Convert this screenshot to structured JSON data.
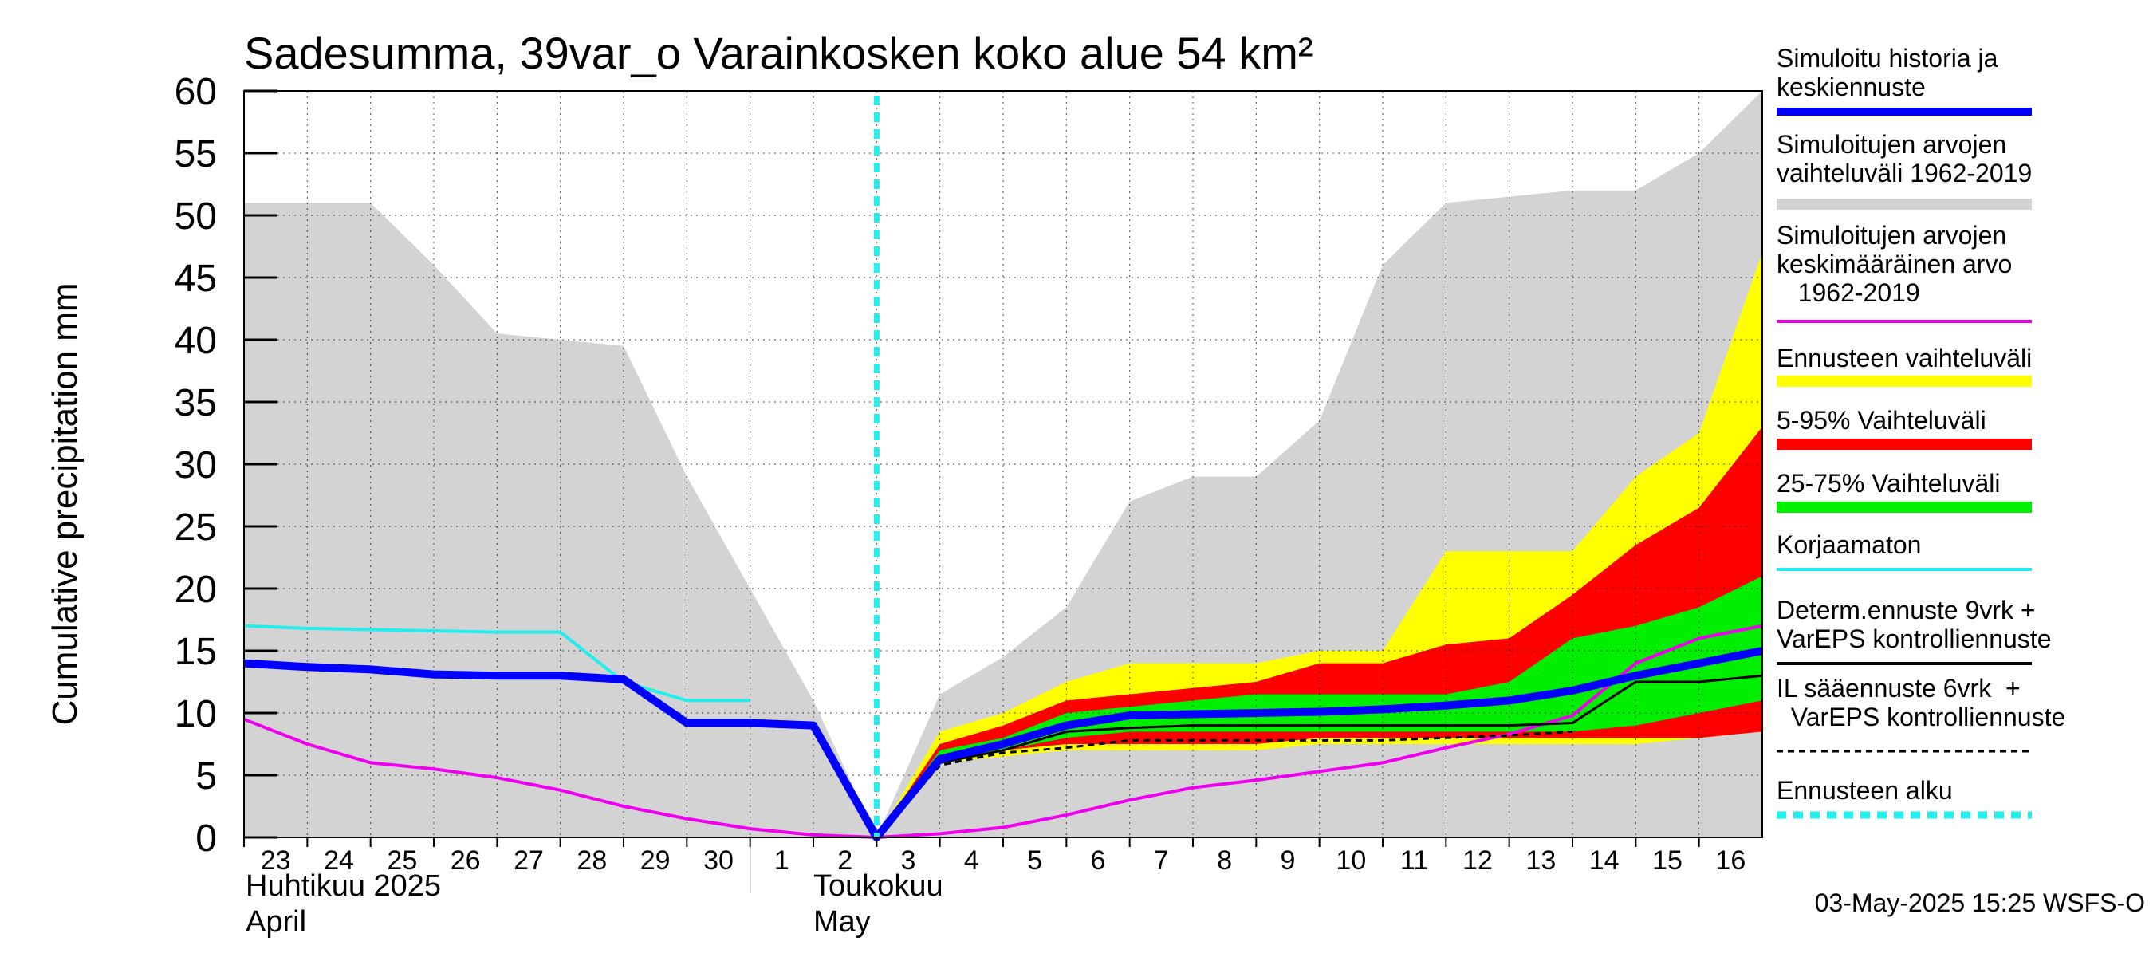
{
  "chart_data": {
    "type": "area",
    "title": "Sadesumma, 39var_o Varainkosken koko alue 54 km²",
    "ylabel": "Cumulative precipitation   mm",
    "ylim": [
      0,
      60
    ],
    "yticks": [
      0,
      5,
      10,
      15,
      20,
      25,
      30,
      35,
      40,
      45,
      50,
      55,
      60
    ],
    "xlim": [
      0,
      24
    ],
    "x_tick_labels": [
      "23",
      "24",
      "25",
      "26",
      "27",
      "28",
      "29",
      "30",
      "1",
      "2",
      "3",
      "4",
      "5",
      "6",
      "7",
      "8",
      "9",
      "10",
      "11",
      "12",
      "13",
      "14",
      "15",
      "16"
    ],
    "month_labels": {
      "april_fi": "Huhtikuu  2025",
      "april_en": "April",
      "may_fi": "Toukokuu",
      "may_en": "May"
    },
    "forecast_start_x": 10,
    "timestamp": "03-May-2025 15:25 WSFS-O",
    "colors": {
      "sim_range": "#d3d3d3",
      "forecast_range": "#ffff00",
      "p5_95": "#ff0000",
      "p25_75": "#00ee00",
      "history_median": "#0000ff",
      "sim_mean": "#ee00ee",
      "uncorrected": "#22eeee",
      "determ": "#000000",
      "il": "#000000",
      "forecast_start": "#22eeee"
    },
    "legend": [
      {
        "key": "history_median",
        "label": [
          "Simuloitu historia ja",
          "keskiennuste"
        ],
        "style": "thick"
      },
      {
        "key": "sim_range",
        "label": [
          "Simuloitujen arvojen",
          "vaihteluväli 1962-2019"
        ],
        "style": "band"
      },
      {
        "key": "sim_mean",
        "label": [
          "Simuloitujen arvojen",
          "keskimääräinen arvo",
          "   1962-2019"
        ],
        "style": "line"
      },
      {
        "key": "forecast_range",
        "label": [
          "Ennusteen vaihteluväli"
        ],
        "style": "band"
      },
      {
        "key": "p5_95",
        "label": [
          "5-95% Vaihteluväli"
        ],
        "style": "band"
      },
      {
        "key": "p25_75",
        "label": [
          "25-75% Vaihteluväli"
        ],
        "style": "band"
      },
      {
        "key": "uncorrected",
        "label": [
          "Korjaamaton"
        ],
        "style": "line"
      },
      {
        "key": "determ",
        "label": [
          "Determ.ennuste 9vrk +",
          "VarEPS kontrolliennuste"
        ],
        "style": "line"
      },
      {
        "key": "il",
        "label": [
          "IL sääennuste 6vrk  +",
          "  VarEPS kontrolliennuste"
        ],
        "style": "dashed"
      },
      {
        "key": "forecast_start",
        "label": [
          "Ennusteen alku"
        ],
        "style": "dotted"
      }
    ],
    "series": {
      "sim_range": {
        "x": [
          0,
          1,
          2,
          3,
          4,
          5,
          6,
          7,
          8,
          9,
          10,
          11,
          12,
          13,
          14,
          15,
          16,
          17,
          18,
          19,
          20,
          21,
          22,
          23,
          24
        ],
        "upper": [
          51,
          51,
          51,
          46,
          40.5,
          40,
          39.5,
          29,
          20,
          11,
          0,
          11.5,
          14.5,
          18.5,
          27,
          29,
          29,
          33.5,
          46,
          51,
          51.5,
          52,
          52,
          55,
          60
        ],
        "lower": [
          0,
          0,
          0,
          0,
          0,
          0,
          0,
          0,
          0,
          0,
          0,
          0,
          0,
          0,
          0,
          0,
          0,
          0,
          0,
          0,
          0,
          0,
          0,
          0,
          0
        ]
      },
      "forecast_range": {
        "x": [
          10,
          11,
          12,
          13,
          14,
          15,
          16,
          17,
          18,
          19,
          20,
          21,
          22,
          23,
          24
        ],
        "upper": [
          0,
          8.5,
          10,
          12.5,
          14,
          14,
          14,
          15,
          15,
          23,
          23,
          23,
          29,
          32.5,
          47
        ],
        "lower": [
          0,
          6,
          6.5,
          7,
          7,
          7,
          7,
          7.5,
          7.5,
          7.5,
          7.5,
          7.5,
          7.5,
          8,
          8.5
        ]
      },
      "p5_95": {
        "x": [
          10,
          11,
          12,
          13,
          14,
          15,
          16,
          17,
          18,
          19,
          20,
          21,
          22,
          23,
          24
        ],
        "upper": [
          0,
          7.5,
          9,
          11,
          11.5,
          12,
          12.5,
          14,
          14,
          15.5,
          16,
          19.5,
          23.5,
          26.5,
          33
        ],
        "lower": [
          0,
          6,
          7,
          7.5,
          7.5,
          7.5,
          7.5,
          8,
          8,
          8,
          8,
          8,
          8,
          8,
          8.5
        ]
      },
      "p25_75": {
        "x": [
          10,
          11,
          12,
          13,
          14,
          15,
          16,
          17,
          18,
          19,
          20,
          21,
          22,
          23,
          24
        ],
        "upper": [
          0,
          7,
          8,
          10,
          10.5,
          11,
          11.5,
          11.5,
          11.5,
          11.5,
          12.5,
          16,
          17,
          18.5,
          21
        ],
        "lower": [
          0,
          6,
          7,
          8,
          8.5,
          8.5,
          8.5,
          8.5,
          8.5,
          8.5,
          8.5,
          8.5,
          9,
          10,
          11
        ]
      },
      "sim_mean": {
        "x": [
          0,
          1,
          2,
          3,
          4,
          5,
          6,
          7,
          8,
          9,
          10,
          11,
          12,
          13,
          14,
          15,
          16,
          17,
          18,
          19,
          20,
          21,
          22,
          23,
          24
        ],
        "y": [
          9.5,
          7.5,
          6,
          5.5,
          4.8,
          3.8,
          2.5,
          1.5,
          0.7,
          0.2,
          0,
          0.3,
          0.8,
          1.8,
          3,
          4,
          4.6,
          5.3,
          6,
          7.2,
          8.3,
          9.8,
          14,
          16,
          17
        ]
      },
      "uncorrected": {
        "x": [
          0,
          1,
          2,
          3,
          4,
          5,
          6,
          7,
          8
        ],
        "y": [
          17,
          16.8,
          16.7,
          16.6,
          16.5,
          16.5,
          12.5,
          11,
          11
        ]
      },
      "determ": {
        "x": [
          10,
          11,
          12,
          13,
          14,
          15,
          16,
          17,
          18,
          19,
          20,
          21,
          22,
          23,
          24
        ],
        "y": [
          0,
          6,
          7,
          8.5,
          8.8,
          9,
          9,
          9,
          9,
          9,
          9,
          9.2,
          12.5,
          12.5,
          13
        ]
      },
      "il": {
        "x": [
          10,
          11,
          12,
          13,
          14,
          15,
          16,
          17,
          18,
          19,
          20,
          21
        ],
        "y": [
          0,
          5.8,
          6.8,
          7.2,
          7.8,
          7.8,
          7.8,
          7.8,
          7.8,
          8,
          8.2,
          8.5
        ]
      },
      "history_median": {
        "x": [
          0,
          1,
          2,
          3,
          4,
          5,
          6,
          7,
          8,
          9,
          10,
          11,
          12,
          13,
          14,
          15,
          16,
          17,
          18,
          19,
          20,
          21,
          22,
          23,
          24
        ],
        "y": [
          14,
          13.7,
          13.5,
          13.1,
          13,
          13,
          12.7,
          9.2,
          9.2,
          9,
          0,
          6.3,
          7.5,
          9,
          9.8,
          9.9,
          10,
          10.1,
          10.3,
          10.6,
          11,
          11.8,
          13,
          14,
          15
        ]
      }
    }
  }
}
